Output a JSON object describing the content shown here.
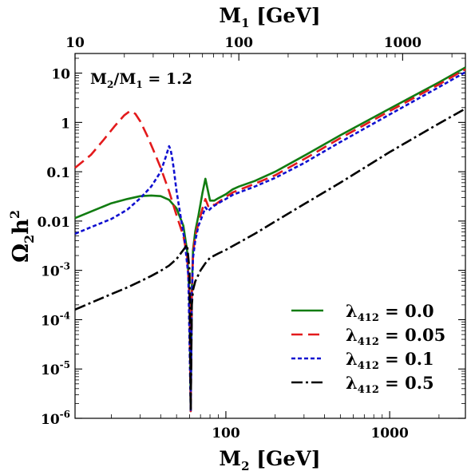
{
  "chart_data": {
    "type": "line",
    "xlabel": "M",
    "xlabel_sub": "2",
    "xlabel_unit": " [GeV]",
    "x2label": "M",
    "x2label_sub": "1",
    "x2label_unit": " [GeV]",
    "ylabel": "Ω",
    "ylabel_sub": "2",
    "ylabel_mid": "h",
    "ylabel_sup": "2",
    "x_scale": "log",
    "y_scale": "log",
    "xlim": [
      12,
      2900
    ],
    "ylim": [
      1e-06,
      25
    ],
    "x2lim": [
      10,
      2417
    ],
    "x_ticks": [
      {
        "value": 100,
        "label": "100"
      },
      {
        "value": 1000,
        "label": "1000"
      }
    ],
    "x2_ticks": [
      {
        "value": 10,
        "label": "10"
      },
      {
        "value": 100,
        "label": "100"
      },
      {
        "value": 1000,
        "label": "1000"
      }
    ],
    "y_ticks": [
      {
        "value": 10,
        "label": "10"
      },
      {
        "value": 1,
        "label": "1"
      },
      {
        "value": 0.1,
        "label": "0.1"
      },
      {
        "value": 0.01,
        "label": "0.01"
      },
      {
        "value": 0.001,
        "base": "10",
        "exp": "-3"
      },
      {
        "value": 0.0001,
        "base": "10",
        "exp": "-4"
      },
      {
        "value": 1e-05,
        "base": "10",
        "exp": "-5"
      },
      {
        "value": 1e-06,
        "base": "10",
        "exp": "-6"
      }
    ],
    "annotation": {
      "a": "M",
      "a_sub": "2",
      "sep": "/M",
      "b_sub": "1",
      "rest": " = 1.2"
    },
    "legend_position": "bottom-right",
    "grid": false,
    "series": [
      {
        "name_sym": "λ",
        "name_sub": "412",
        "name_val": " = 0.0",
        "color": "#117c11",
        "dash": "solid",
        "x": [
          12,
          16,
          20,
          25,
          30,
          35,
          40,
          45,
          50,
          55,
          58,
          60,
          61,
          62,
          63,
          65,
          68,
          72,
          75,
          77,
          80,
          85,
          90,
          100,
          110,
          120,
          150,
          200,
          300,
          500,
          1000,
          2000,
          2900
        ],
        "y": [
          0.0115,
          0.017,
          0.023,
          0.028,
          0.032,
          0.033,
          0.032,
          0.027,
          0.018,
          0.008,
          0.0025,
          0.0003,
          1.4e-06,
          0.0004,
          0.0026,
          0.0062,
          0.013,
          0.038,
          0.072,
          0.048,
          0.026,
          0.026,
          0.029,
          0.035,
          0.044,
          0.05,
          0.065,
          0.1,
          0.21,
          0.55,
          1.9,
          6.5,
          13
        ]
      },
      {
        "name_sym": "λ",
        "name_sub": "412",
        "name_val": " = 0.05",
        "color": "#e31a1c",
        "dash": "14,7",
        "x": [
          12,
          15,
          18,
          21,
          24,
          26,
          28,
          30,
          33,
          36,
          40,
          45,
          50,
          55,
          58,
          60,
          61,
          62,
          63,
          65,
          68,
          72,
          75,
          78,
          82,
          85,
          90,
          100,
          110,
          150,
          200,
          300,
          500,
          1000,
          2000,
          2900
        ],
        "y": [
          0.12,
          0.22,
          0.45,
          0.85,
          1.4,
          1.7,
          1.5,
          1.05,
          0.55,
          0.28,
          0.12,
          0.04,
          0.013,
          0.005,
          0.002,
          0.0003,
          1.4e-06,
          0.0003,
          0.0022,
          0.005,
          0.009,
          0.018,
          0.028,
          0.02,
          0.023,
          0.021,
          0.024,
          0.031,
          0.038,
          0.057,
          0.085,
          0.18,
          0.48,
          1.7,
          5.9,
          12
        ]
      },
      {
        "name_sym": "λ",
        "name_sub": "412",
        "name_val": " = 0.1",
        "color": "#1010d0",
        "dash": "5,3",
        "x": [
          12,
          15,
          20,
          25,
          30,
          35,
          40,
          43,
          45,
          46,
          47,
          48,
          50,
          53,
          56,
          59,
          61,
          62,
          63,
          65,
          68,
          72,
          75,
          78,
          82,
          90,
          100,
          110,
          150,
          200,
          300,
          500,
          1000,
          2000,
          2900
        ],
        "y": [
          0.0055,
          0.0075,
          0.011,
          0.017,
          0.029,
          0.05,
          0.1,
          0.2,
          0.33,
          0.28,
          0.19,
          0.12,
          0.04,
          0.012,
          0.004,
          0.0008,
          1.4e-06,
          0.0003,
          0.0018,
          0.004,
          0.008,
          0.013,
          0.019,
          0.016,
          0.019,
          0.023,
          0.028,
          0.034,
          0.05,
          0.075,
          0.15,
          0.4,
          1.45,
          5.2,
          10.5
        ]
      },
      {
        "name_sym": "λ",
        "name_sub": "412",
        "name_val": " = 0.5",
        "color": "#000000",
        "dash": "14,4,3,4",
        "x": [
          12,
          15,
          20,
          25,
          30,
          35,
          40,
          45,
          50,
          55,
          58,
          60,
          61,
          62,
          63,
          65,
          70,
          75,
          80,
          90,
          100,
          150,
          200,
          300,
          500,
          1000,
          2000,
          2900
        ],
        "y": [
          0.00016,
          0.00022,
          0.00033,
          0.00045,
          0.0006,
          0.00077,
          0.00098,
          0.00125,
          0.0017,
          0.0026,
          0.0033,
          0.001,
          1.4e-06,
          0.0002,
          0.0004,
          0.0006,
          0.001,
          0.0014,
          0.0018,
          0.0022,
          0.0026,
          0.0055,
          0.0098,
          0.022,
          0.06,
          0.25,
          0.95,
          1.9
        ]
      }
    ]
  }
}
